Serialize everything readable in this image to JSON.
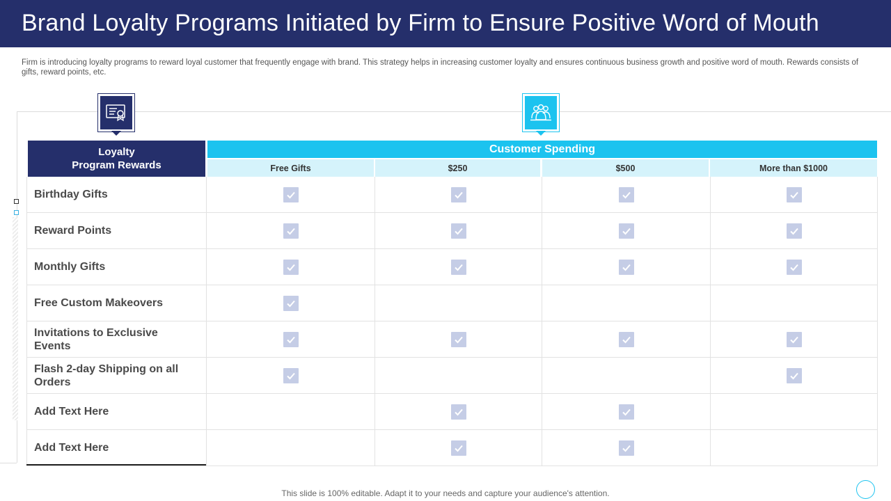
{
  "title": "Brand Loyalty Programs Initiated by Firm to Ensure Positive Word of Mouth",
  "intro": "Firm is introducing loyalty programs to reward loyal customer that frequently engage with brand. This strategy helps in increasing customer loyalty and ensures continuous business growth and positive word of mouth. Rewards consists of gifts, reward points, etc.",
  "icons": {
    "left": "certificate-icon",
    "right": "customers-group-icon"
  },
  "table": {
    "loyalty_header": "Loyalty\nProgram Rewards",
    "spending_header": "Customer Spending",
    "columns": [
      "Free Gifts",
      "$250",
      "$500",
      "More than $1000"
    ],
    "rows": [
      {
        "label": "Birthday Gifts",
        "checks": [
          true,
          true,
          true,
          true
        ]
      },
      {
        "label": "Reward Points",
        "checks": [
          true,
          true,
          true,
          true
        ]
      },
      {
        "label": "Monthly Gifts",
        "checks": [
          true,
          true,
          true,
          true
        ]
      },
      {
        "label": "Free Custom Makeovers",
        "checks": [
          true,
          false,
          false,
          false
        ]
      },
      {
        "label": "Invitations to Exclusive Events",
        "checks": [
          true,
          true,
          true,
          true
        ]
      },
      {
        "label": "Flash 2-day Shipping on all Orders",
        "checks": [
          true,
          false,
          false,
          true
        ]
      },
      {
        "label": "Add Text Here",
        "checks": [
          false,
          true,
          true,
          false
        ]
      },
      {
        "label": "Add Text Here",
        "checks": [
          false,
          true,
          true,
          false
        ]
      }
    ]
  },
  "footer": "This slide is 100% editable. Adapt it to your needs and capture your audience's attention.",
  "colors": {
    "navy": "#252f6b",
    "cyan": "#1cc3ef",
    "light_cyan": "#d5f3fb",
    "check": "#c5cde6"
  }
}
